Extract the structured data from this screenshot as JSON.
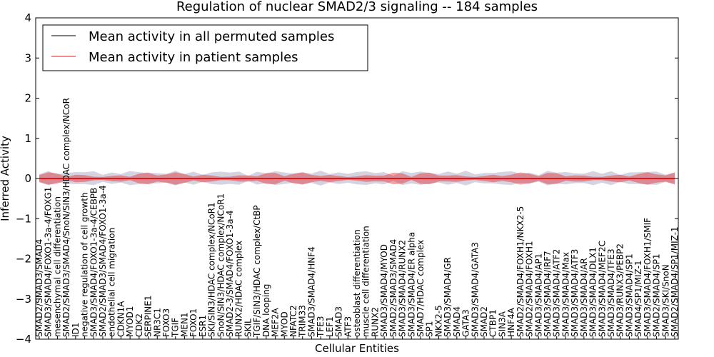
{
  "chart_data": {
    "type": "line",
    "title": "Regulation of nuclear SMAD2/3 signaling -- 184 samples",
    "xlabel": "Cellular Entities",
    "ylabel": "Inferred Activity",
    "ylim": [
      -4,
      4
    ],
    "yticks": [
      -4,
      -3,
      -2,
      -1,
      0,
      1,
      2,
      3,
      4
    ],
    "ytick_labels": [
      "−4",
      "−3",
      "−2",
      "−1",
      "0",
      "1",
      "2",
      "3",
      "4"
    ],
    "legend_position": "top-left",
    "legend": [
      {
        "label": "Mean activity in all permuted samples",
        "color": "#000000"
      },
      {
        "label": "Mean activity in patient samples",
        "color": "#e41a1c"
      }
    ],
    "series": [
      {
        "name": "Mean activity in all permuted samples",
        "color": "#000000",
        "values": "all 0.0 (flat line)"
      },
      {
        "name": "Mean activity in patient samples",
        "color": "#e41a1c",
        "values": "approx. 0.0 across all entities"
      }
    ],
    "categories": [
      "SMAD2/SMAD3/SMAD4",
      "SMAD3/SMAD4/FOXO1-3a-4/FOXG1",
      "mesenchymal cell differentiation",
      "SMAD2/SMAD3/SMAD4/SnoN/SIN3/HDAC complex/NCoR",
      "ID1",
      "negative regulation of cell growth",
      "SMAD3/SMAD4/FOXO1-3a-4/CEBPB",
      "SMAD2/SMAD3/SMAD4/FOXO1-3a-4",
      "endothelial cell migration",
      "CDKN1A",
      "MYOD1",
      "CDK2",
      "SERPINE1",
      "NR3C1",
      "FOXO3",
      "TGIF",
      "MEN1",
      "FOXO1",
      "ESR1",
      "SKI/SIN3/HDAC complex/NCoR1",
      "SnoN/SIN3/HDAC complex/NCoR1",
      "SMAD2-3/SMAD4/FOXO1-3a-4",
      "RUNX2/HDAC complex",
      "SKIL",
      "TGIF/SIN3/HDAC complex/CtBP",
      "DNA looping",
      "MEF2A",
      "MYOD",
      "NFATC2",
      "TRIM33",
      "SMAD3/SMAD4/HNF4",
      "TFE3",
      "LEF1",
      "SMAD3",
      "ATF3",
      "osteoblast differentiation",
      "muscle cell differentiation",
      "RUNX2",
      "SMAD3/SMAD4/MYOD",
      "SMAD2/SMAD3/SMAD4",
      "SMAD3/SMAD4/RUNX2",
      "SMAD3/SMAD4/ER alpha",
      "SMAD7/HDAC complex",
      "SP1",
      "NKX2-5",
      "SMAD3/SMAD4/GR",
      "SMAD4",
      "GATA3",
      "SMAD3/SMAD4/GATA3",
      "SMAD2",
      "CTBP1",
      "SIN3A",
      "HNF4A",
      "SMAD2/SMAD4/FOXH1/NKX2-5",
      "SMAD2/SMAD4/FOXH1",
      "SMAD3/SMAD4/AP1",
      "SMAD3/SMAD4/IRF7",
      "SMAD3/SMAD4/ATF2",
      "SMAD3/SMAD4/Max",
      "SMAD3/SMAD4/ATF3",
      "SMAD3/SMAD4/AR",
      "SMAD3/SMAD4/DLX1",
      "SMAD3/SMAD4/MEF2C",
      "SMAD3/SMAD4/TFE3",
      "SMAD3/RUNX3/PEBP2",
      "SMAD3/SMAD4/SP1",
      "SMAD4/SP1/MIZ-1",
      "SMAD3/SMAD4/FOXH1/SMIF",
      "SMAD2/SMAD4/SP1",
      "SMAD3/SKI/SnoN",
      "SMAD2/SMAD4/SP1/MIZ-1"
    ]
  }
}
